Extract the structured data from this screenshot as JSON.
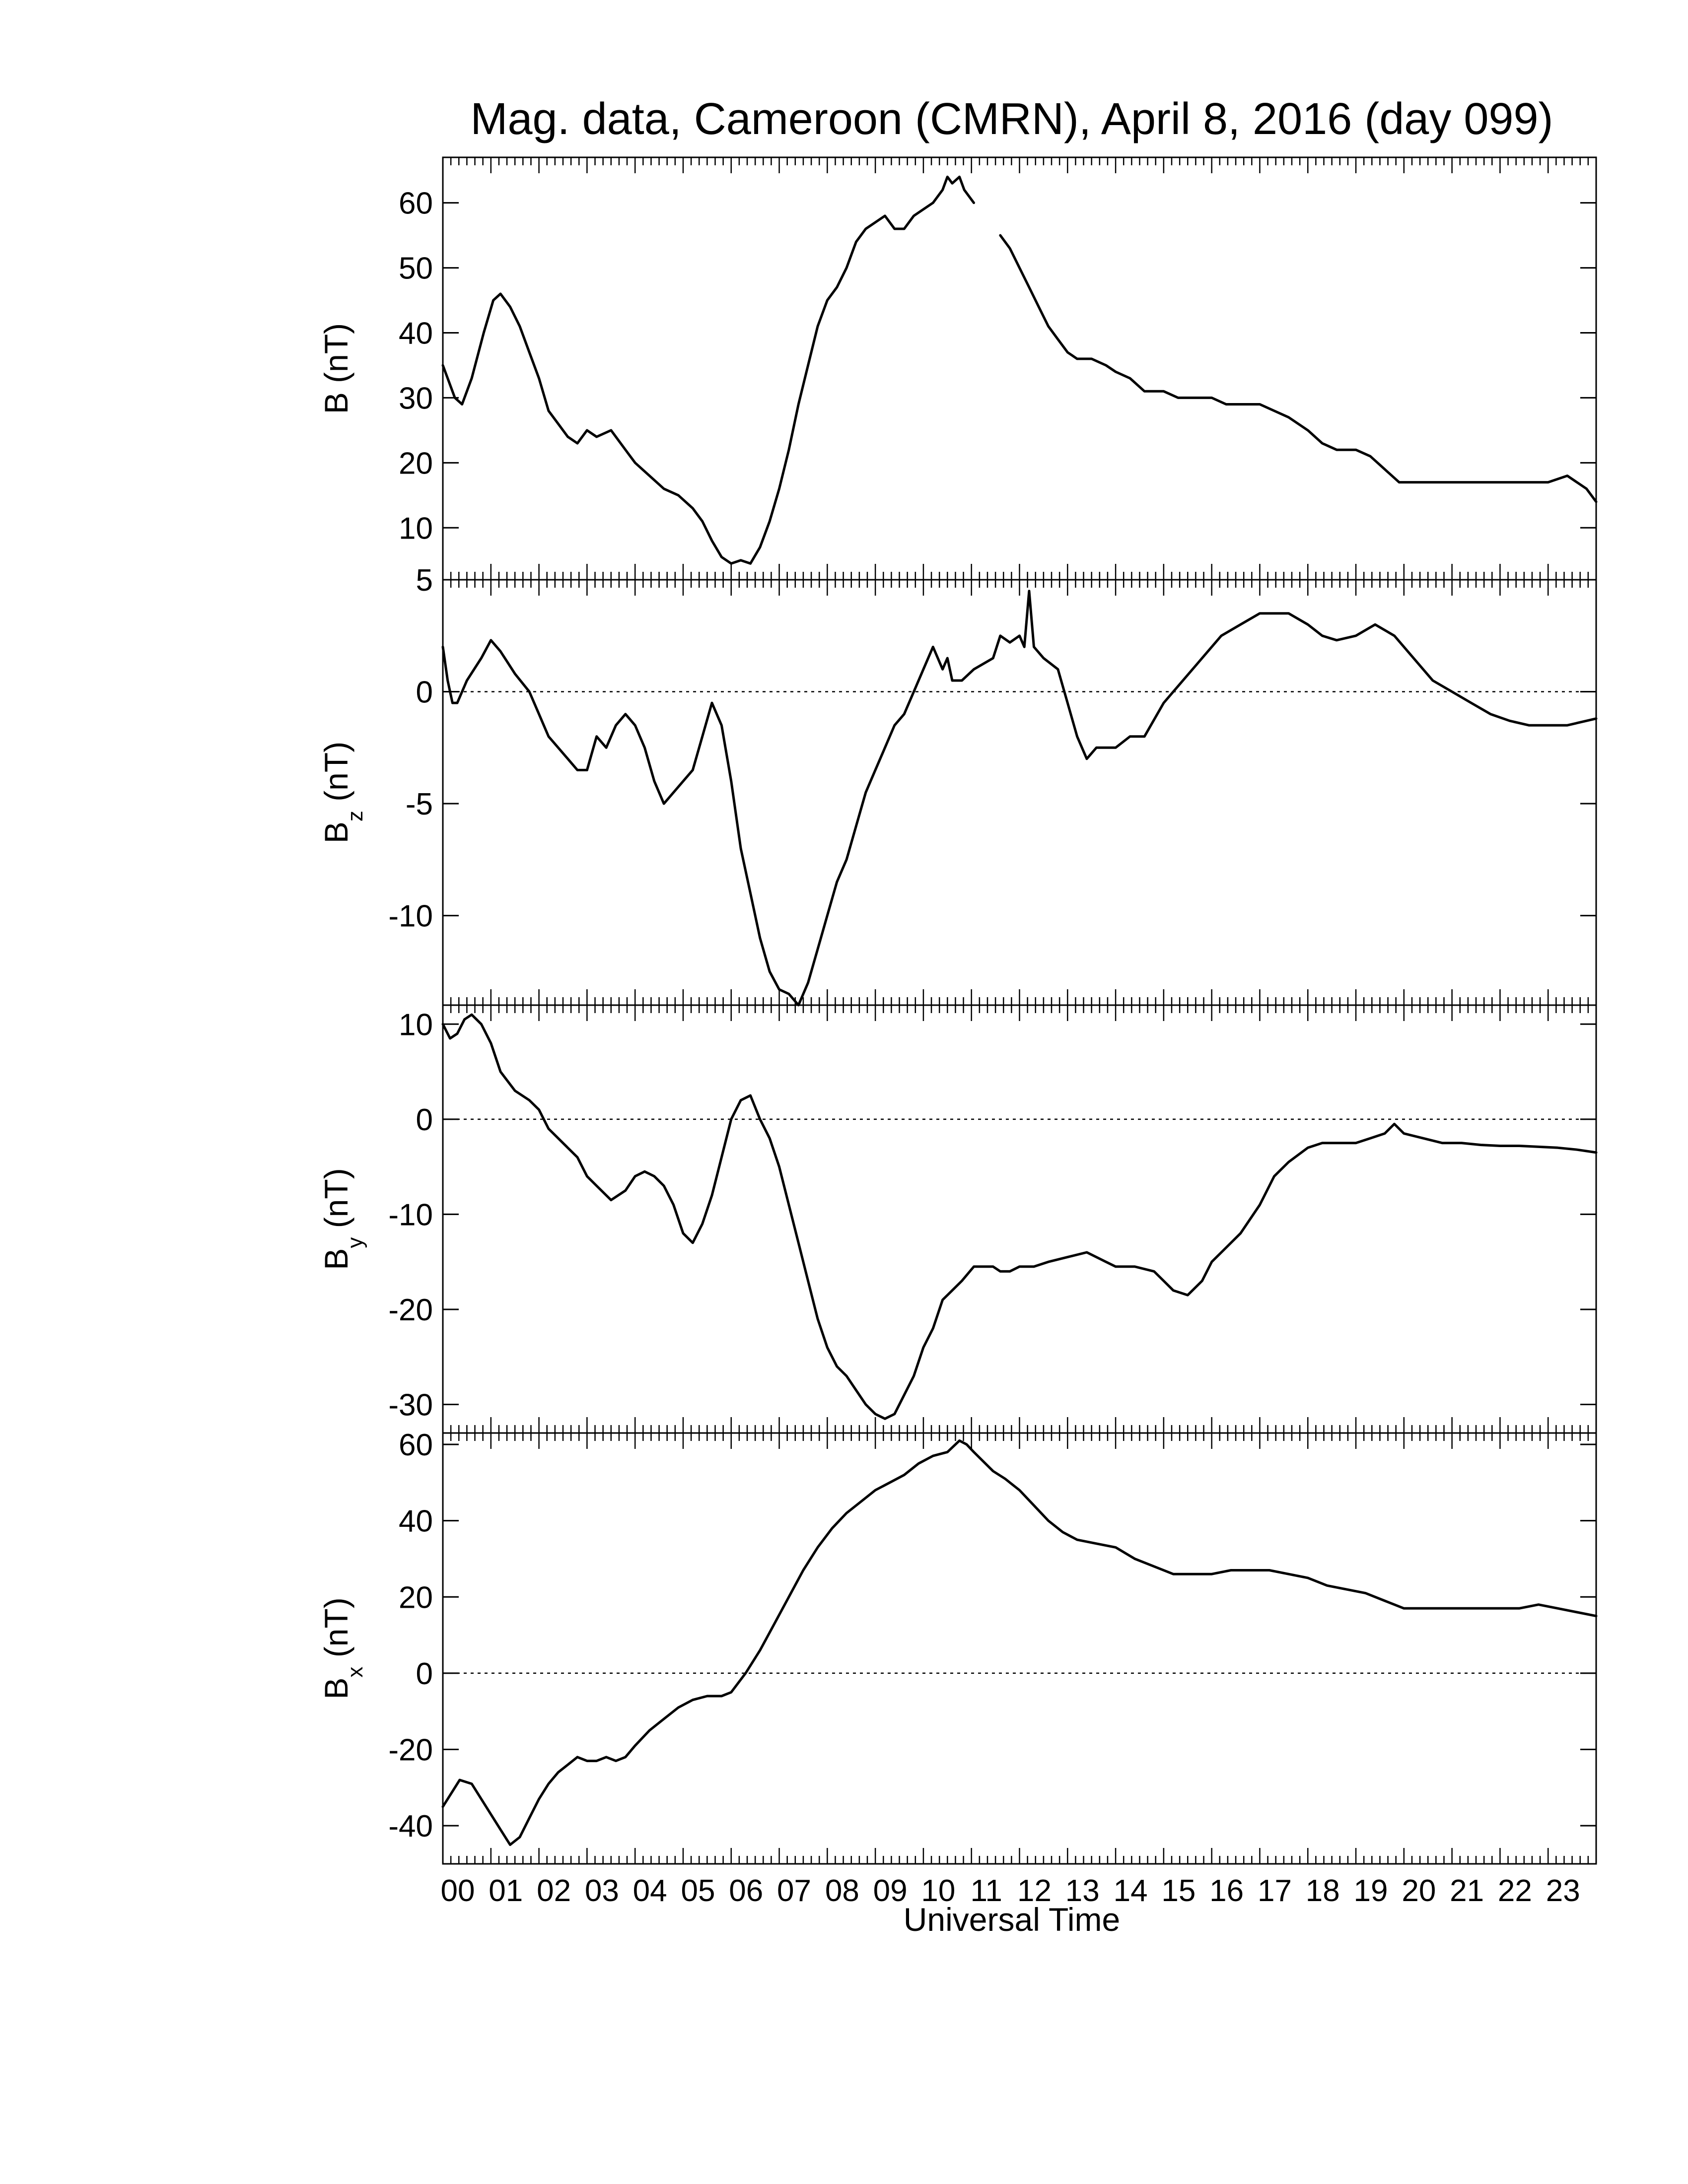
{
  "chart_data": {
    "type": "line",
    "title": "Mag. data, Cameroon (CMRN), April 8, 2016 (day 099)",
    "xlabel": "Universal Time",
    "x_tick_labels": [
      "00",
      "01",
      "02",
      "03",
      "04",
      "05",
      "06",
      "07",
      "08",
      "09",
      "10",
      "11",
      "12",
      "13",
      "14",
      "15",
      "16",
      "17",
      "18",
      "19",
      "20",
      "21",
      "22",
      "23"
    ],
    "xlim": [
      0,
      24
    ],
    "data_gap_hours": [
      11.05,
      11.45
    ],
    "panels": [
      {
        "ylabel": "B (nT)",
        "ylim": [
          2,
          67
        ],
        "yticks": [
          10,
          20,
          30,
          40,
          50,
          60
        ],
        "zero_line": false,
        "series": {
          "x": [
            0,
            0.1,
            0.25,
            0.4,
            0.6,
            0.85,
            1.05,
            1.2,
            1.4,
            1.6,
            1.8,
            2.0,
            2.2,
            2.4,
            2.6,
            2.8,
            3.0,
            3.2,
            3.5,
            3.8,
            4.0,
            4.3,
            4.6,
            4.9,
            5.2,
            5.4,
            5.6,
            5.8,
            6.0,
            6.2,
            6.4,
            6.6,
            6.8,
            7.0,
            7.2,
            7.4,
            7.6,
            7.8,
            8.0,
            8.2,
            8.4,
            8.6,
            8.8,
            9.0,
            9.2,
            9.4,
            9.6,
            9.8,
            10.0,
            10.2,
            10.4,
            10.5,
            10.6,
            10.75,
            10.85,
            10.95,
            11.05,
            11.45,
            11.6,
            11.8,
            12.0,
            12.2,
            12.4,
            12.6,
            12.8,
            13.0,
            13.2,
            13.5,
            13.8,
            14.0,
            14.3,
            14.6,
            15.0,
            15.3,
            15.6,
            16.0,
            16.3,
            16.6,
            17.0,
            17.3,
            17.6,
            18.0,
            18.3,
            18.6,
            19.0,
            19.3,
            19.6,
            19.9,
            20.2,
            20.6,
            21.0,
            21.4,
            21.8,
            22.2,
            22.6,
            23.0,
            23.4,
            23.8,
            24.0
          ],
          "y": [
            35,
            33,
            30,
            29,
            33,
            40,
            45,
            46,
            44,
            41,
            37,
            33,
            28,
            26,
            24,
            23,
            25,
            24,
            25,
            22,
            20,
            18,
            16,
            15,
            13,
            11,
            8,
            5.5,
            4.5,
            5,
            4.5,
            7,
            11,
            16,
            22,
            29,
            35,
            41,
            45,
            47,
            50,
            54,
            56,
            57,
            58,
            56,
            56,
            58,
            59,
            60,
            62,
            64,
            63,
            64,
            62,
            61,
            60,
            null,
            55,
            53,
            50,
            47,
            44,
            41,
            39,
            37,
            36,
            36,
            35,
            34,
            33,
            31,
            31,
            30,
            30,
            30,
            29,
            29,
            29,
            28,
            27,
            25,
            23,
            22,
            22,
            21,
            19,
            17,
            17,
            17,
            17,
            17,
            17,
            17,
            17,
            17,
            18,
            16,
            14
          ]
        }
      },
      {
        "ylabel": "Bz (nT)",
        "ylim": [
          -14,
          5
        ],
        "yticks": [
          5,
          0,
          -5,
          -10
        ],
        "zero_line": true,
        "series": {
          "x": [
            0,
            0.1,
            0.2,
            0.3,
            0.5,
            0.8,
            1.0,
            1.2,
            1.5,
            1.8,
            2.0,
            2.2,
            2.4,
            2.6,
            2.8,
            3.0,
            3.2,
            3.4,
            3.6,
            3.8,
            4.0,
            4.2,
            4.4,
            4.6,
            4.8,
            5.0,
            5.2,
            5.4,
            5.6,
            5.8,
            6.0,
            6.2,
            6.4,
            6.6,
            6.8,
            7.0,
            7.2,
            7.4,
            7.6,
            7.8,
            8.0,
            8.2,
            8.4,
            8.6,
            8.8,
            9.0,
            9.2,
            9.4,
            9.6,
            9.8,
            10.0,
            10.2,
            10.4,
            10.5,
            10.6,
            10.8,
            11.05,
            11.45,
            11.6,
            11.8,
            12.0,
            12.1,
            12.2,
            12.3,
            12.5,
            12.8,
            13.0,
            13.2,
            13.4,
            13.6,
            13.8,
            14.0,
            14.3,
            14.6,
            15.0,
            15.4,
            15.8,
            16.2,
            16.6,
            17.0,
            17.3,
            17.6,
            18.0,
            18.3,
            18.6,
            19.0,
            19.4,
            19.8,
            20.2,
            20.6,
            21.0,
            21.4,
            21.8,
            22.2,
            22.6,
            23.0,
            23.4,
            23.8,
            24.0
          ],
          "y": [
            2,
            0.5,
            -0.5,
            -0.5,
            0.5,
            1.5,
            2.3,
            1.8,
            0.8,
            0,
            -1,
            -2,
            -2.5,
            -3,
            -3.5,
            -3.5,
            -2,
            -2.5,
            -1.5,
            -1,
            -1.5,
            -2.5,
            -4,
            -5,
            -4.5,
            -4,
            -3.5,
            -2,
            -0.5,
            -1.5,
            -4,
            -7,
            -9,
            -11,
            -12.5,
            -13.3,
            -13.5,
            -14,
            -13,
            -11.5,
            -10,
            -8.5,
            -7.5,
            -6,
            -4.5,
            -3.5,
            -2.5,
            -1.5,
            -1,
            0,
            1,
            2,
            1,
            1.5,
            0.5,
            0.5,
            1,
            1.5,
            2.5,
            2.2,
            2.5,
            2,
            4.5,
            2,
            1.5,
            1,
            -0.5,
            -2,
            -3,
            -2.5,
            -2.5,
            -2.5,
            -2,
            -2,
            -0.5,
            0.5,
            1.5,
            2.5,
            3,
            3.5,
            3.5,
            3.5,
            3,
            2.5,
            2.3,
            2.5,
            3,
            2.5,
            1.5,
            0.5,
            0,
            -0.5,
            -1,
            -1.3,
            -1.5,
            -1.5,
            -1.5,
            -1.3,
            -1.2
          ]
        }
      },
      {
        "ylabel": "By (nT)",
        "ylim": [
          -33,
          12
        ],
        "yticks": [
          10,
          0,
          -10,
          -20,
          -30
        ],
        "zero_line": true,
        "series": {
          "x": [
            0,
            0.15,
            0.3,
            0.45,
            0.6,
            0.8,
            1.0,
            1.2,
            1.5,
            1.8,
            2.0,
            2.2,
            2.5,
            2.8,
            3.0,
            3.2,
            3.5,
            3.8,
            4.0,
            4.2,
            4.4,
            4.6,
            4.8,
            5.0,
            5.2,
            5.4,
            5.6,
            5.8,
            6.0,
            6.2,
            6.4,
            6.6,
            6.8,
            7.0,
            7.2,
            7.4,
            7.6,
            7.8,
            8.0,
            8.2,
            8.4,
            8.6,
            8.8,
            9.0,
            9.2,
            9.4,
            9.6,
            9.8,
            10.0,
            10.2,
            10.4,
            10.6,
            10.8,
            11.05,
            11.45,
            11.6,
            11.8,
            12.0,
            12.3,
            12.6,
            13.0,
            13.4,
            13.8,
            14.0,
            14.4,
            14.8,
            15.0,
            15.2,
            15.5,
            15.8,
            16.0,
            16.3,
            16.6,
            17.0,
            17.3,
            17.6,
            18.0,
            18.3,
            18.6,
            19.0,
            19.3,
            19.6,
            19.8,
            20.0,
            20.4,
            20.8,
            21.2,
            21.6,
            22.0,
            22.4,
            22.8,
            23.2,
            23.6,
            24.0
          ],
          "y": [
            10,
            8.5,
            9,
            10.5,
            11,
            10,
            8,
            5,
            3,
            2,
            1,
            -1,
            -2.5,
            -4,
            -6,
            -7,
            -8.5,
            -7.5,
            -6,
            -5.5,
            -6,
            -7,
            -9,
            -12,
            -13,
            -11,
            -8,
            -4,
            0,
            2,
            2.5,
            0,
            -2,
            -5,
            -9,
            -13,
            -17,
            -21,
            -24,
            -26,
            -27,
            -28.5,
            -30,
            -31,
            -31.5,
            -31,
            -29,
            -27,
            -24,
            -22,
            -19,
            -18,
            -17,
            -15.5,
            -15.5,
            -16,
            -16,
            -15.5,
            -15.5,
            -15,
            -14.5,
            -14,
            -15,
            -15.5,
            -15.5,
            -16,
            -17,
            -18,
            -18.5,
            -17,
            -15,
            -13.5,
            -12,
            -9,
            -6,
            -4.5,
            -3,
            -2.5,
            -2.5,
            -2.5,
            -2,
            -1.5,
            -0.5,
            -1.5,
            -2,
            -2.5,
            -2.5,
            -2.7,
            -2.8,
            -2.8,
            -2.9,
            -3,
            -3.2,
            -3.5
          ]
        }
      },
      {
        "ylabel": "Bx (nT)",
        "ylim": [
          -50,
          63
        ],
        "yticks": [
          60,
          40,
          20,
          0,
          -20,
          -40
        ],
        "zero_line": true,
        "series": {
          "x": [
            0,
            0.2,
            0.35,
            0.6,
            0.9,
            1.2,
            1.4,
            1.6,
            1.8,
            2.0,
            2.2,
            2.4,
            2.6,
            2.8,
            3.0,
            3.2,
            3.4,
            3.6,
            3.8,
            4.0,
            4.3,
            4.6,
            4.9,
            5.2,
            5.5,
            5.8,
            6.0,
            6.3,
            6.6,
            6.9,
            7.2,
            7.5,
            7.8,
            8.1,
            8.4,
            8.7,
            9.0,
            9.3,
            9.6,
            9.9,
            10.2,
            10.5,
            10.75,
            10.9,
            11.05,
            11.45,
            11.7,
            12.0,
            12.3,
            12.6,
            12.9,
            13.2,
            13.6,
            14.0,
            14.4,
            14.8,
            15.2,
            15.6,
            16.0,
            16.4,
            16.8,
            17.2,
            17.6,
            18.0,
            18.4,
            18.8,
            19.2,
            19.6,
            20.0,
            20.4,
            20.8,
            21.2,
            21.6,
            22.0,
            22.4,
            22.8,
            23.2,
            23.6,
            24.0
          ],
          "y": [
            -35,
            -31,
            -28,
            -29,
            -35,
            -41,
            -45,
            -43,
            -38,
            -33,
            -29,
            -26,
            -24,
            -22,
            -23,
            -23,
            -22,
            -23,
            -22,
            -19,
            -15,
            -12,
            -9,
            -7,
            -6,
            -6,
            -5,
            0,
            6,
            13,
            20,
            27,
            33,
            38,
            42,
            45,
            48,
            50,
            52,
            55,
            57,
            58,
            61,
            60,
            58,
            53,
            51,
            48,
            44,
            40,
            37,
            35,
            34,
            33,
            30,
            28,
            26,
            26,
            26,
            27,
            27,
            27,
            26,
            25,
            23,
            22,
            21,
            19,
            17,
            17,
            17,
            17,
            17,
            17,
            17,
            18,
            17,
            16,
            15
          ]
        }
      }
    ]
  }
}
